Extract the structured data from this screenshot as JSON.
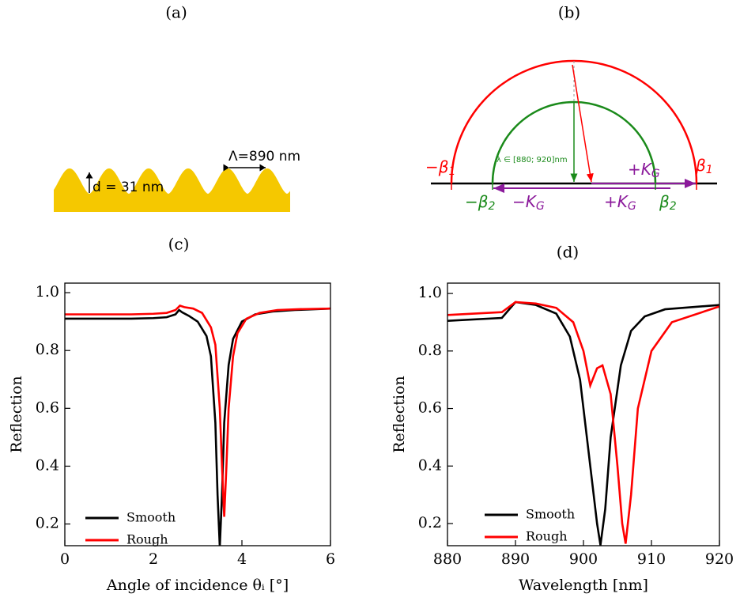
{
  "diagrams": {
    "a": {
      "panel_label": "(a)",
      "period_label": "Λ=890 nm",
      "depth_label": "d = 31 nm"
    },
    "b": {
      "panel_label": "(b)",
      "wavelength_label": "λ ∈ [880; 920]nm",
      "minus_beta1": {
        "main": "−β",
        "sub": "1"
      },
      "beta1": {
        "main": "β",
        "sub": "1"
      },
      "minus_beta2": {
        "main": "−β",
        "sub": "2"
      },
      "beta2": {
        "main": "β",
        "sub": "2"
      },
      "minus_kg": {
        "main": "−K",
        "sub": "G"
      },
      "plus_kg_low": {
        "main": "+K",
        "sub": "G"
      },
      "plus_kg_high": {
        "main": "+K",
        "sub": "G"
      }
    }
  },
  "chart_data": [
    {
      "type": "line",
      "title": "(c)",
      "x_label": "Angle of incidence θᵢ [°]",
      "y_label": "Reflection",
      "xlim": [
        0,
        6
      ],
      "xticks": [
        0,
        2,
        4,
        6
      ],
      "ylim": [
        0.125,
        1.033
      ],
      "yticks": [
        0.2,
        0.4,
        0.6,
        0.8,
        {
          "value": 1,
          "label": "1.0"
        }
      ],
      "legend": "lower-left",
      "series": [
        {
          "name": "Smooth",
          "color": "#000000",
          "x": [
            0,
            0.5,
            1,
            1.5,
            2,
            2.3,
            2.5,
            2.58,
            2.65,
            2.8,
            3.0,
            3.2,
            3.3,
            3.4,
            3.45,
            3.5,
            3.55,
            3.6,
            3.7,
            3.8,
            4.0,
            4.3,
            4.7,
            5.2,
            6
          ],
          "values": [
            0.91,
            0.91,
            0.91,
            0.91,
            0.912,
            0.915,
            0.925,
            0.94,
            0.932,
            0.92,
            0.9,
            0.85,
            0.78,
            0.55,
            0.3,
            0.12,
            0.3,
            0.55,
            0.75,
            0.84,
            0.9,
            0.925,
            0.935,
            0.94,
            0.945
          ]
        },
        {
          "name": "Rough",
          "color": "#ff0000",
          "x": [
            0,
            0.5,
            1,
            1.5,
            2,
            2.3,
            2.5,
            2.6,
            2.7,
            2.9,
            3.1,
            3.3,
            3.4,
            3.5,
            3.55,
            3.6,
            3.65,
            3.7,
            3.8,
            3.9,
            4.1,
            4.4,
            4.8,
            5.3,
            6
          ],
          "values": [
            0.925,
            0.925,
            0.925,
            0.925,
            0.927,
            0.93,
            0.94,
            0.955,
            0.95,
            0.945,
            0.93,
            0.88,
            0.82,
            0.6,
            0.4,
            0.225,
            0.4,
            0.6,
            0.78,
            0.86,
            0.91,
            0.93,
            0.94,
            0.943,
            0.945
          ]
        }
      ]
    },
    {
      "type": "line",
      "title": "(d)",
      "x_label": "Wavelength [nm]",
      "y_label": "Reflection",
      "xlim": [
        880,
        920
      ],
      "xticks": [
        880,
        890,
        900,
        910,
        920
      ],
      "ylim": [
        0.123,
        1.036
      ],
      "yticks": [
        0.2,
        0.4,
        0.6,
        0.8,
        {
          "value": 1,
          "label": "1.0"
        }
      ],
      "legend": "lower-left",
      "series": [
        {
          "name": "Smooth",
          "color": "#000000",
          "x": [
            880,
            888,
            890,
            893,
            896,
            898,
            899.5,
            901,
            902,
            902.5,
            903.2,
            904,
            905.5,
            907,
            909,
            912,
            920
          ],
          "values": [
            0.905,
            0.915,
            0.97,
            0.96,
            0.93,
            0.85,
            0.7,
            0.4,
            0.2,
            0.125,
            0.25,
            0.5,
            0.75,
            0.87,
            0.92,
            0.945,
            0.96
          ]
        },
        {
          "name": "Rough",
          "color": "#ff0000",
          "x": [
            880,
            888,
            890,
            893,
            896,
            898.5,
            900,
            901,
            902,
            902.8,
            904,
            905,
            905.7,
            906.2,
            907,
            908,
            910,
            913,
            920
          ],
          "values": [
            0.925,
            0.935,
            0.97,
            0.965,
            0.95,
            0.9,
            0.8,
            0.68,
            0.74,
            0.75,
            0.65,
            0.4,
            0.2,
            0.13,
            0.3,
            0.6,
            0.8,
            0.9,
            0.955
          ]
        }
      ]
    }
  ]
}
